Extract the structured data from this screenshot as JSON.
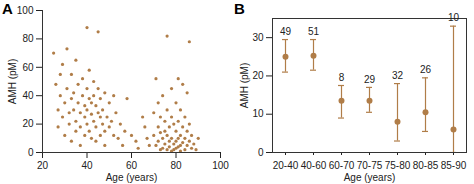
{
  "chart_data": [
    {
      "type": "scatter",
      "title": "A",
      "color": "#b07d48",
      "x_label": "Age (years)",
      "y_label": "AMH (pM)",
      "xlim": [
        20,
        100
      ],
      "xticks": [
        20,
        40,
        60,
        80,
        100
      ],
      "ylim": [
        0,
        100
      ],
      "yticks": [
        0,
        20,
        40,
        60,
        80,
        100
      ],
      "x": [
        25,
        26,
        27,
        27,
        28,
        28,
        29,
        29,
        30,
        30,
        31,
        31,
        32,
        32,
        33,
        33,
        33,
        34,
        34,
        35,
        35,
        35,
        36,
        36,
        37,
        37,
        37,
        38,
        38,
        39,
        39,
        39,
        40,
        40,
        40,
        40,
        41,
        41,
        41,
        42,
        42,
        42,
        43,
        43,
        43,
        44,
        44,
        44,
        45,
        45,
        45,
        46,
        46,
        46,
        47,
        47,
        48,
        48,
        48,
        49,
        50,
        50,
        51,
        52,
        52,
        53,
        54,
        55,
        56,
        57,
        58,
        60,
        62,
        63,
        65,
        66,
        67,
        68,
        70,
        70,
        71,
        71,
        72,
        72,
        72,
        73,
        73,
        73,
        74,
        74,
        74,
        75,
        75,
        75,
        76,
        76,
        76,
        76,
        77,
        77,
        77,
        78,
        78,
        78,
        78,
        79,
        79,
        79,
        80,
        80,
        80,
        80,
        81,
        81,
        81,
        81,
        82,
        82,
        82,
        82,
        83,
        83,
        83,
        84,
        84,
        84,
        85,
        85,
        85,
        86,
        86,
        86,
        87,
        87,
        88,
        89,
        90
      ],
      "y": [
        70,
        48,
        30,
        18,
        55,
        40,
        62,
        25,
        35,
        12,
        73,
        45,
        28,
        20,
        55,
        38,
        8,
        42,
        30,
        65,
        22,
        15,
        48,
        35,
        28,
        18,
        5,
        52,
        40,
        33,
        25,
        12,
        88,
        45,
        30,
        20,
        58,
        38,
        15,
        35,
        27,
        10,
        50,
        40,
        22,
        33,
        18,
        8,
        85,
        45,
        28,
        38,
        25,
        12,
        30,
        20,
        42,
        15,
        5,
        25,
        35,
        18,
        22,
        40,
        12,
        28,
        10,
        20,
        5,
        15,
        38,
        12,
        8,
        3,
        25,
        18,
        10,
        5,
        28,
        12,
        5,
        52,
        35,
        18,
        8,
        2,
        25,
        14,
        40,
        10,
        3,
        22,
        15,
        6,
        82,
        30,
        12,
        2,
        18,
        8,
        4,
        45,
        25,
        10,
        1,
        20,
        6,
        2,
        35,
        15,
        8,
        3,
        52,
        22,
        10,
        4,
        30,
        12,
        5,
        1,
        48,
        18,
        7,
        25,
        10,
        2,
        42,
        15,
        5,
        8,
        20,
        78,
        12,
        3,
        6,
        2,
        10
      ]
    },
    {
      "type": "errorbar",
      "title": "B",
      "color": "#b07d48",
      "x_label": "Age (years)",
      "y_label": "AMH (pM)",
      "categories": [
        "20-40",
        "40-60",
        "60-70",
        "70-75",
        "75-80",
        "80-85",
        "85-90"
      ],
      "values": [
        25,
        25.3,
        13.5,
        13.5,
        8,
        10.5,
        6
      ],
      "error_low": [
        21,
        21.5,
        9,
        10.5,
        3,
        5.5,
        0
      ],
      "error_high": [
        29.5,
        29.5,
        17.5,
        17,
        18,
        19.5,
        33
      ],
      "n": [
        49,
        51,
        8,
        29,
        32,
        26,
        10
      ],
      "ylim": [
        0,
        35
      ],
      "yticks": [
        0,
        10,
        20,
        30
      ]
    }
  ]
}
